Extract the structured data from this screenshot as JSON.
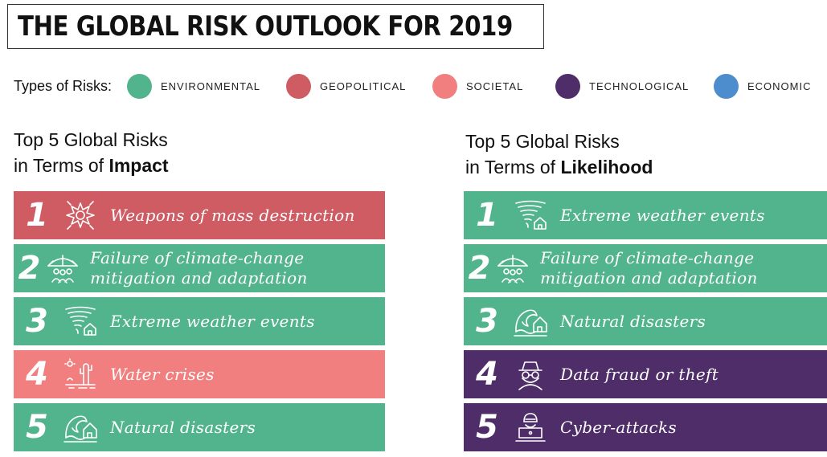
{
  "title": "THE GLOBAL RISK OUTLOOK FOR 2019",
  "legend": {
    "label": "Types of Risks:",
    "items": [
      {
        "label": "ENVIRONMENTAL",
        "color": "#52b48c"
      },
      {
        "label": "GEOPOLITICAL",
        "color": "#cf5b63"
      },
      {
        "label": "SOCIETAL",
        "color": "#f27f7f"
      },
      {
        "label": "TECHNOLOGICAL",
        "color": "#4e2d68"
      },
      {
        "label": "ECONOMIC",
        "color": "#4d8ccd"
      }
    ]
  },
  "impact": {
    "title_line1": "Top 5 Global Risks",
    "title_prefix": "in Terms of ",
    "title_bold": "Impact",
    "items": [
      {
        "rank": "1",
        "text": "Weapons of mass destruction",
        "type": "geopolitical",
        "icon": "explosion-icon",
        "color": "#cf5b63"
      },
      {
        "rank": "2",
        "text": "Failure of climate-change mitigation and adaptation",
        "type": "environmental",
        "icon": "umbrella-people-icon",
        "color": "#52b48c"
      },
      {
        "rank": "3",
        "text": "Extreme weather events",
        "type": "environmental",
        "icon": "tornado-icon",
        "color": "#52b48c"
      },
      {
        "rank": "4",
        "text": "Water crises",
        "type": "societal",
        "icon": "drought-cactus-icon",
        "color": "#f27f7f"
      },
      {
        "rank": "5",
        "text": "Natural disasters",
        "type": "environmental",
        "icon": "wave-house-icon",
        "color": "#52b48c"
      }
    ]
  },
  "likelihood": {
    "title_line1": "Top 5 Global Risks",
    "title_prefix": "in Terms of ",
    "title_bold": "Likelihood",
    "items": [
      {
        "rank": "1",
        "text": "Extreme weather events",
        "type": "environmental",
        "icon": "tornado-icon",
        "color": "#52b48c"
      },
      {
        "rank": "2",
        "text": "Failure of climate-change mitigation and adaptation",
        "type": "environmental",
        "icon": "umbrella-people-icon",
        "color": "#52b48c"
      },
      {
        "rank": "3",
        "text": "Natural disasters",
        "type": "environmental",
        "icon": "wave-house-icon",
        "color": "#52b48c"
      },
      {
        "rank": "4",
        "text": "Data fraud or theft",
        "type": "technological",
        "icon": "spy-icon",
        "color": "#4e2d68"
      },
      {
        "rank": "5",
        "text": "Cyber-attacks",
        "type": "technological",
        "icon": "hacker-laptop-icon",
        "color": "#4e2d68"
      }
    ]
  }
}
